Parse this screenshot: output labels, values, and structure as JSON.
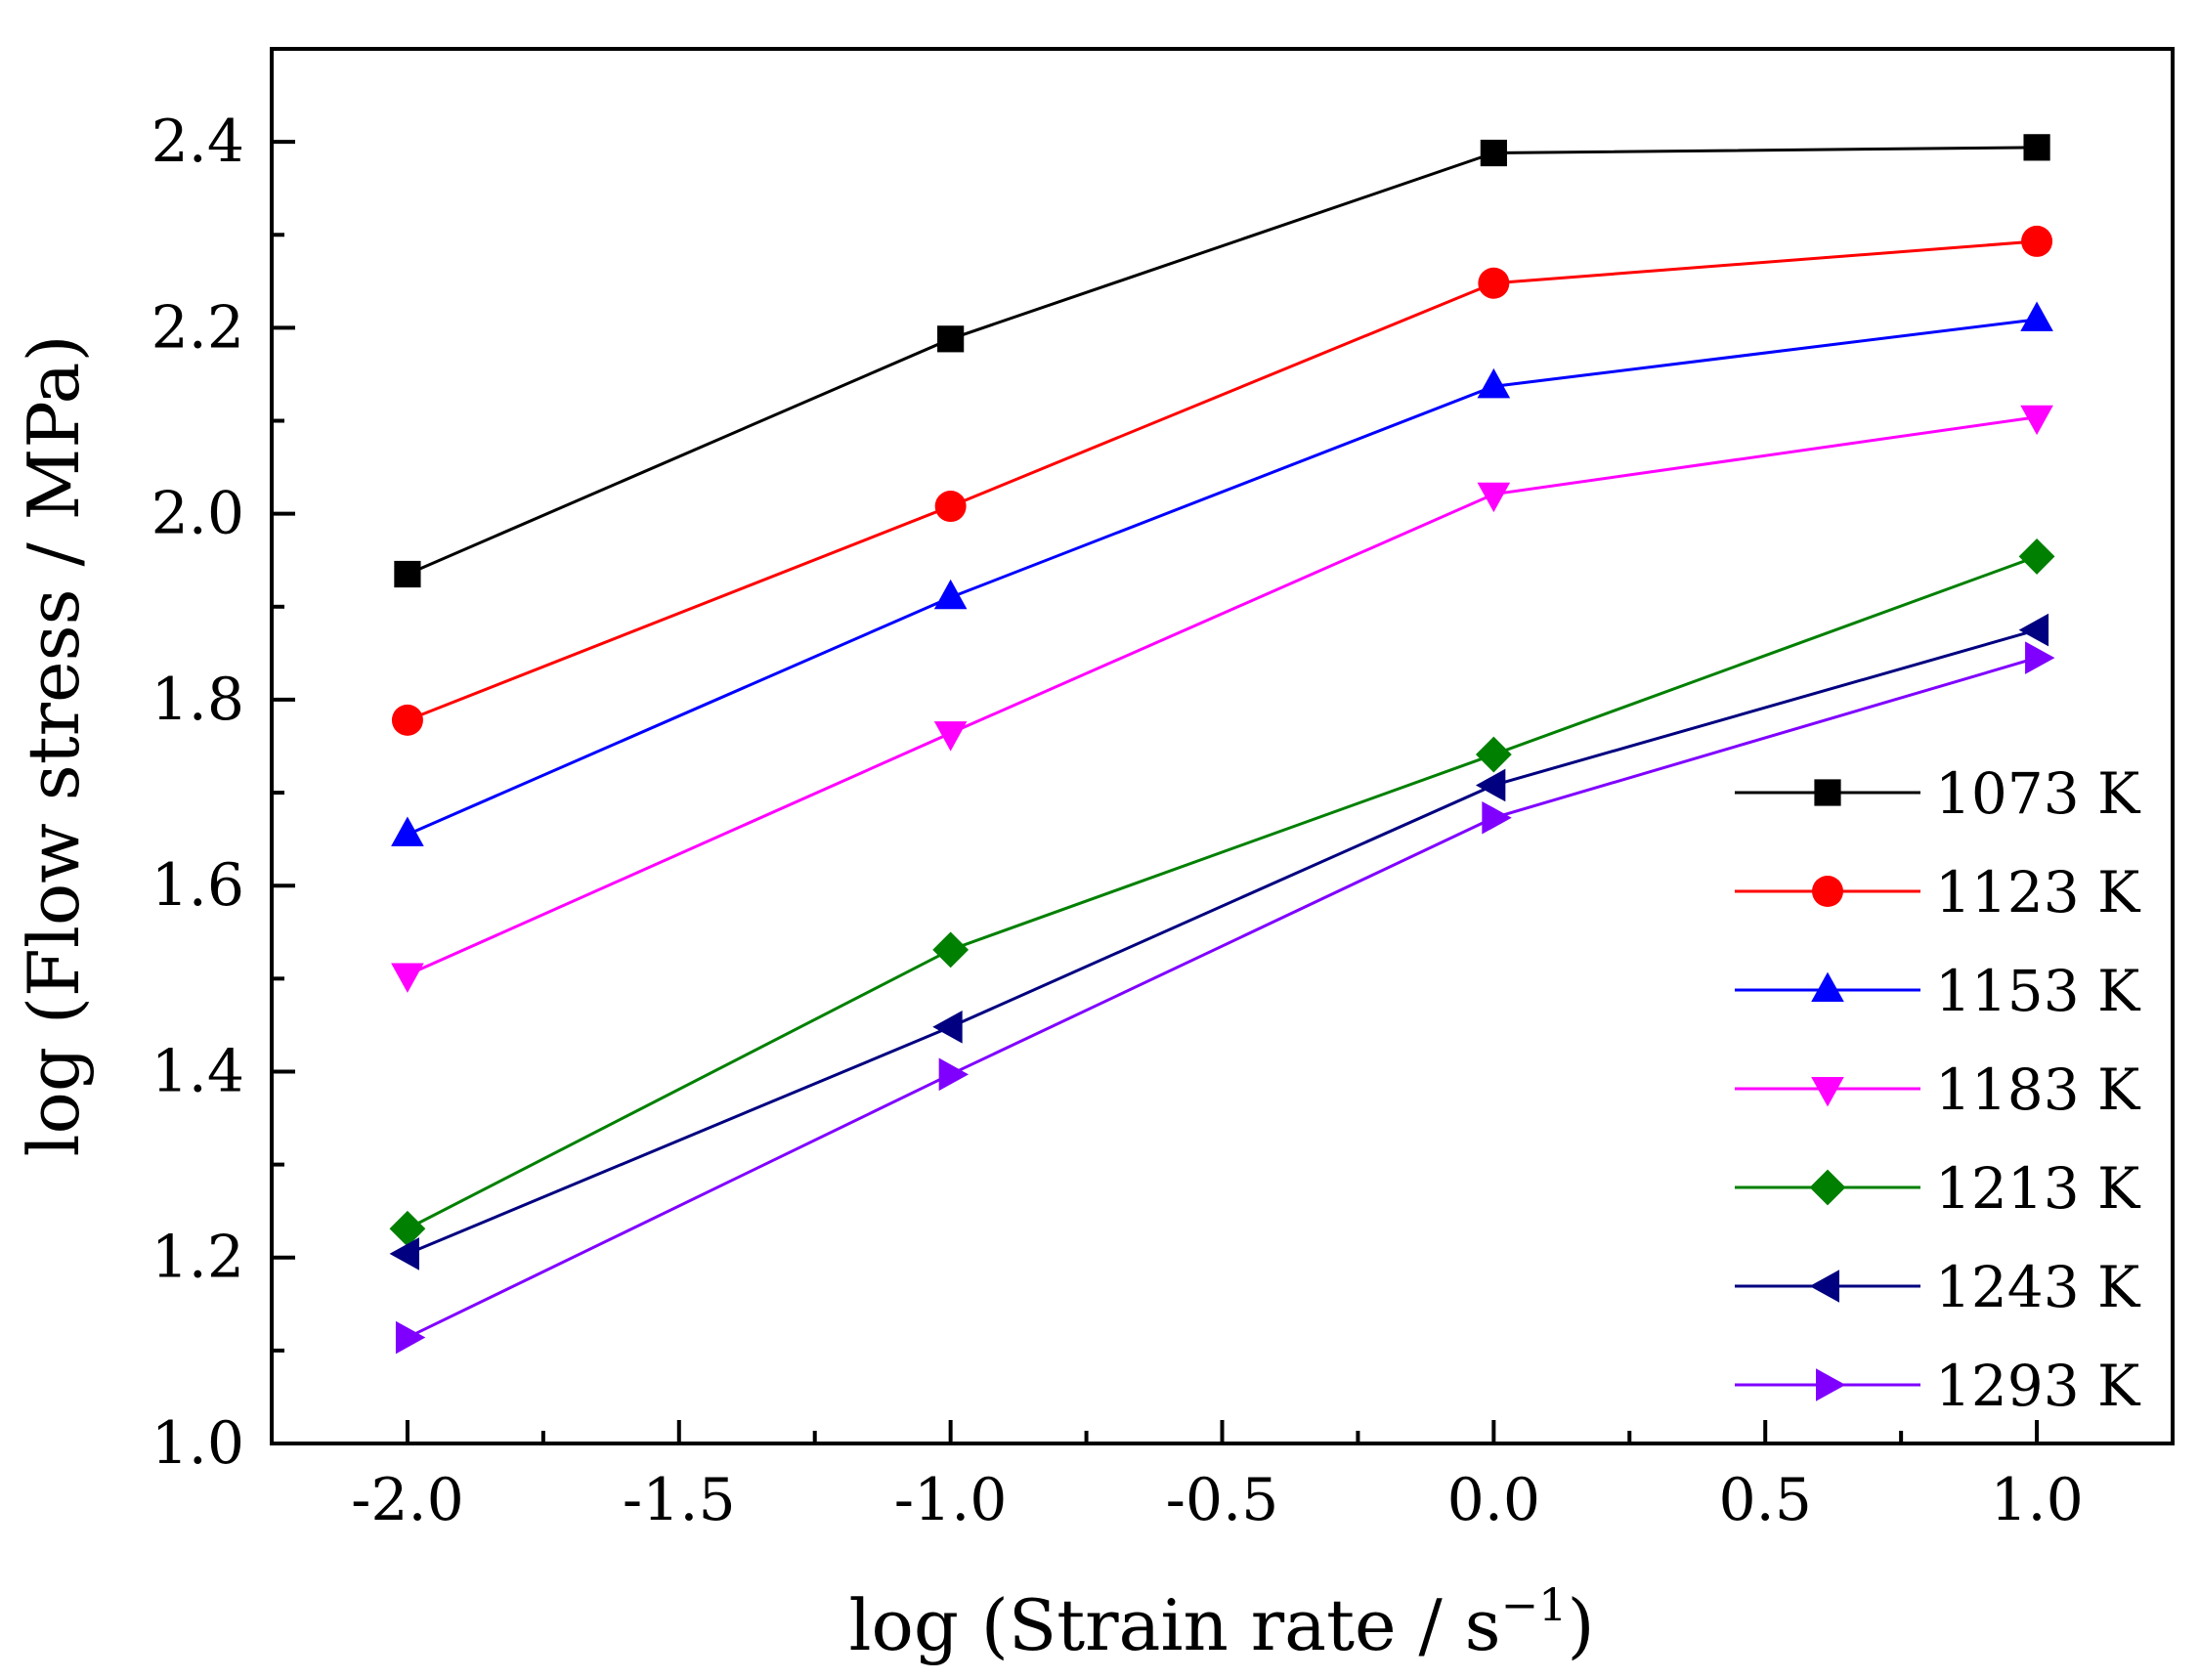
{
  "chart_data": {
    "type": "line",
    "title": "",
    "xlabel": "log (Strain rate / s",
    "xlabel_superscript": "−1",
    "xlabel_close": ")",
    "ylabel": "log (Flow stress / MPa)",
    "xlim": [
      -2.25,
      1.25
    ],
    "ylim": [
      1.0,
      2.5
    ],
    "x": [
      -2.0,
      -1.0,
      0.0,
      1.0
    ],
    "x_ticks": [
      {
        "value": -2.0,
        "label": "-2.0"
      },
      {
        "value": -1.5,
        "label": "-1.5"
      },
      {
        "value": -1.0,
        "label": "-1.0"
      },
      {
        "value": -0.5,
        "label": "-0.5"
      },
      {
        "value": 0.0,
        "label": "0.0"
      },
      {
        "value": 0.5,
        "label": "0.5"
      },
      {
        "value": 1.0,
        "label": "1.0"
      }
    ],
    "y_ticks": [
      {
        "value": 1.0,
        "label": "1.0"
      },
      {
        "value": 1.2,
        "label": "1.2"
      },
      {
        "value": 1.4,
        "label": "1.4"
      },
      {
        "value": 1.6,
        "label": "1.6"
      },
      {
        "value": 1.8,
        "label": "1.8"
      },
      {
        "value": 2.0,
        "label": "2.0"
      },
      {
        "value": 2.2,
        "label": "2.2"
      },
      {
        "value": 2.4,
        "label": "2.4"
      }
    ],
    "legend_position": "bottom-right",
    "grid": false,
    "series": [
      {
        "name": "1073 K",
        "color": "#000000",
        "marker": "square",
        "values": [
          1.935,
          2.188,
          2.388,
          2.394
        ]
      },
      {
        "name": "1123 K",
        "color": "#ff0000",
        "marker": "circle",
        "values": [
          1.778,
          2.008,
          2.248,
          2.293
        ]
      },
      {
        "name": "1153 K",
        "color": "#0000ff",
        "marker": "triangle-up",
        "values": [
          1.655,
          1.91,
          2.137,
          2.209
        ]
      },
      {
        "name": "1183 K",
        "color": "#ff00ff",
        "marker": "triangle-down",
        "values": [
          1.504,
          1.764,
          2.021,
          2.104
        ]
      },
      {
        "name": "1213 K",
        "color": "#008000",
        "marker": "diamond",
        "values": [
          1.231,
          1.531,
          1.741,
          1.954
        ]
      },
      {
        "name": "1243 K",
        "color": "#000080",
        "marker": "triangle-left",
        "values": [
          1.204,
          1.448,
          1.708,
          1.875
        ]
      },
      {
        "name": "1293 K",
        "color": "#8000ff",
        "marker": "triangle-right",
        "values": [
          1.114,
          1.397,
          1.673,
          1.845
        ]
      }
    ]
  }
}
